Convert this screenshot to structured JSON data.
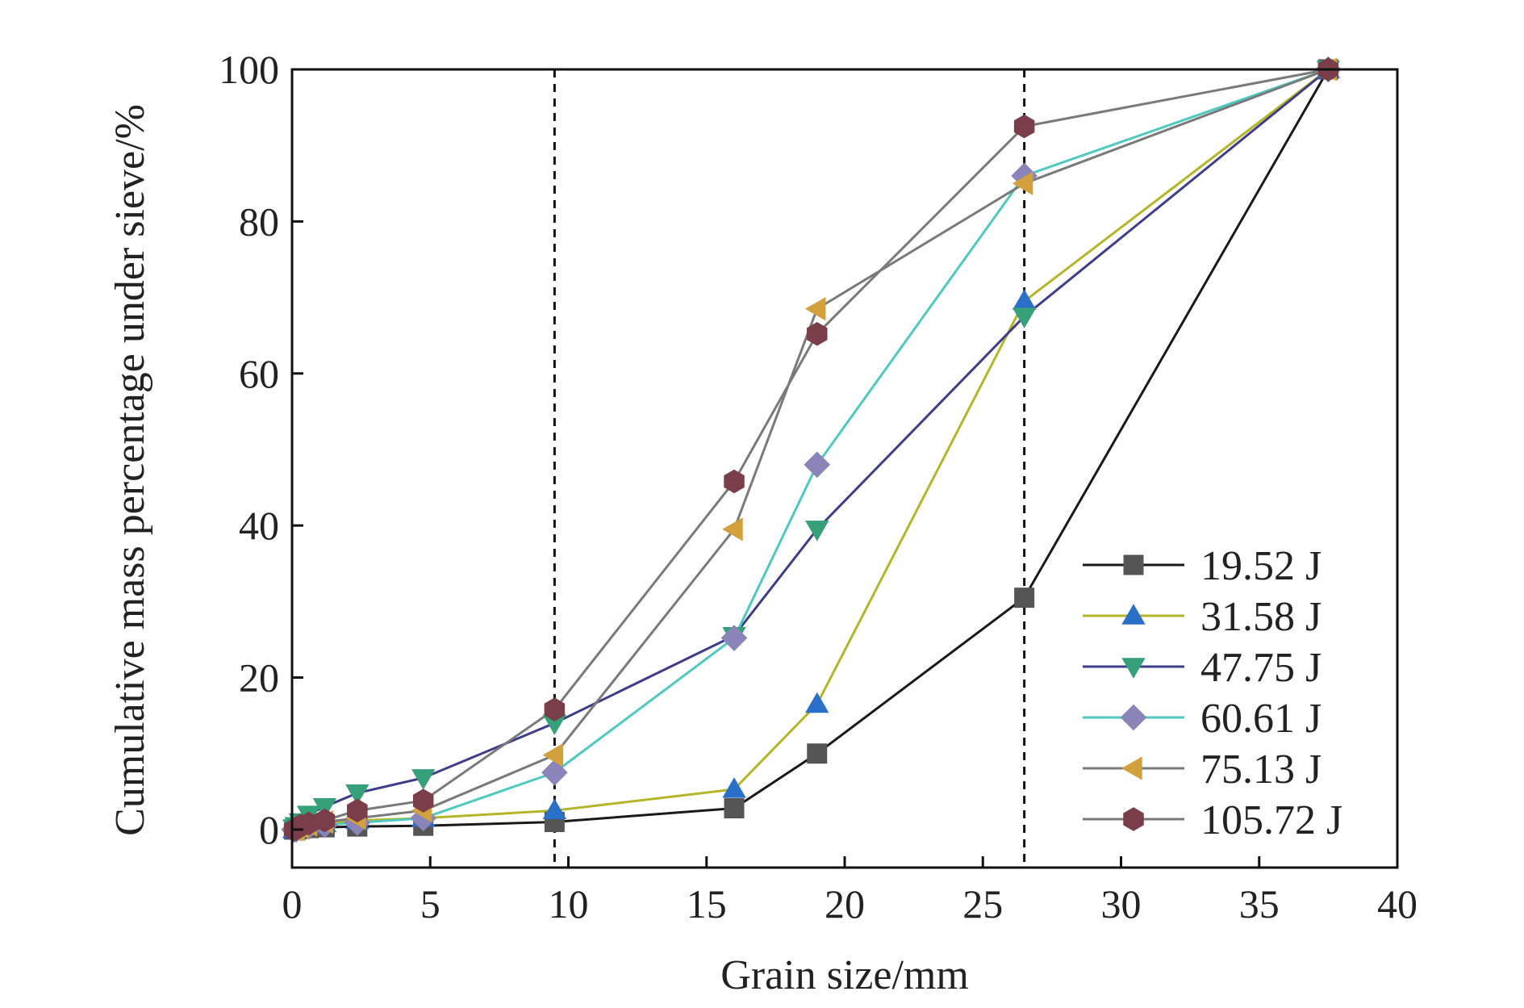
{
  "chart_data": {
    "type": "line",
    "title": "",
    "xlabel": "Grain size/mm",
    "ylabel": "Cumulative mass percentage under sieve/%",
    "xlim": [
      0,
      40
    ],
    "ylim": [
      -5,
      100
    ],
    "xticks": [
      0,
      5,
      10,
      15,
      20,
      25,
      30,
      35,
      40
    ],
    "yticks": [
      0,
      20,
      40,
      60,
      80,
      100
    ],
    "grid": false,
    "legend_position": "bottom-right",
    "reference_lines_x": [
      9.5,
      26.5
    ],
    "x": [
      0.075,
      0.15,
      0.3,
      0.6,
      1.18,
      2.36,
      4.75,
      9.5,
      16,
      19,
      26.5,
      37.5
    ],
    "series": [
      {
        "name": "19.52 J",
        "color": "#1a1a1a",
        "marker": "square",
        "marker_color": "#555555",
        "values": [
          0,
          0,
          0.1,
          0.2,
          0.3,
          0.4,
          0.5,
          1.0,
          2.8,
          10.0,
          30.5,
          100
        ]
      },
      {
        "name": "31.58 J",
        "color": "#b5b52a",
        "marker": "triangle-up",
        "marker_color": "#2a6fc8",
        "values": [
          0,
          0.1,
          0.3,
          0.5,
          0.8,
          1.2,
          1.5,
          2.5,
          5.3,
          16.5,
          69.5,
          100
        ]
      },
      {
        "name": "47.75 J",
        "color": "#3d3d8a",
        "marker": "triangle-down",
        "marker_color": "#35a07a",
        "values": [
          0.2,
          0.5,
          1.0,
          2.0,
          3.0,
          4.8,
          6.8,
          14.0,
          25.5,
          39.5,
          67.5,
          100
        ]
      },
      {
        "name": "60.61 J",
        "color": "#4ec9c0",
        "marker": "diamond",
        "marker_color": "#8a84b8",
        "values": [
          0,
          0,
          0.2,
          0.4,
          0.6,
          0.9,
          1.5,
          7.5,
          25.2,
          48.0,
          86.0,
          100
        ]
      },
      {
        "name": "75.13 J",
        "color": "#7a7a7a",
        "marker": "triangle-left",
        "marker_color": "#d2a03c",
        "values": [
          0,
          0,
          0.3,
          0.6,
          1.0,
          1.5,
          2.5,
          9.8,
          39.5,
          68.5,
          85.0,
          100
        ]
      },
      {
        "name": "105.72 J",
        "color": "#7a7a7a",
        "marker": "hexagon",
        "marker_color": "#7a3e4a",
        "values": [
          0,
          0.1,
          0.5,
          0.8,
          1.2,
          2.5,
          3.8,
          15.8,
          45.8,
          65.2,
          92.5,
          100
        ]
      }
    ]
  }
}
